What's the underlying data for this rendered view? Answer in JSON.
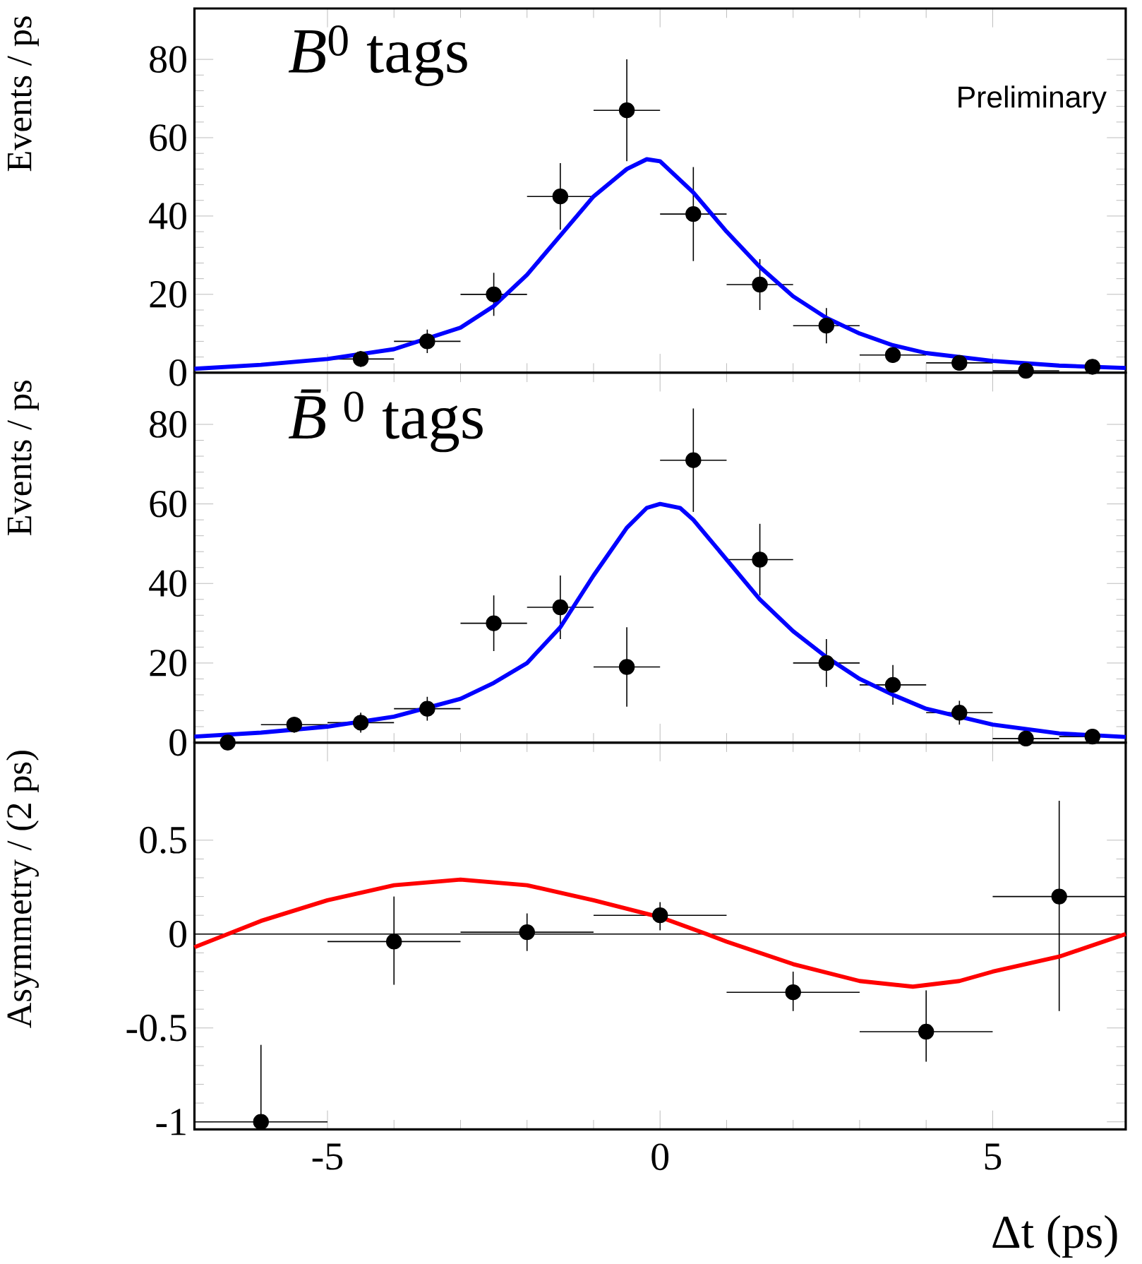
{
  "chart_data": [
    {
      "type": "scatter",
      "ylabel": "Events / ps",
      "xlim": [
        -7,
        7
      ],
      "xticks": [
        -5,
        0,
        5
      ],
      "ylim": [
        0,
        93
      ],
      "yticks": [
        0,
        20,
        40,
        60,
        80
      ],
      "tick_labels": "y",
      "annotations": [
        "*B*$^{0}$ tags",
        "Preliminary"
      ],
      "series": [
        {
          "type": "scatter",
          "marker": "circle",
          "color": "#000000",
          "x": [
            -4.5,
            -3.5,
            -2.5,
            -1.5,
            -0.5,
            0.5,
            1.5,
            2.5,
            3.5,
            4.5,
            5.5,
            6.5
          ],
          "values": [
            3.5,
            8,
            20,
            45,
            67,
            40.5,
            22.5,
            12,
            4.5,
            2.5,
            0.5,
            1.5
          ],
          "errors": [
            2,
            3,
            5.5,
            8.5,
            13,
            12,
            6.5,
            4.5,
            2,
            1.5,
            1,
            1
          ],
          "xerrors": [
            0.5,
            0.5,
            0.5,
            0.5,
            0.5,
            0.5,
            0.5,
            0.5,
            0.5,
            0.5,
            0.5,
            0.5
          ]
        },
        {
          "type": "line",
          "marker": "none",
          "color": "#0000ff",
          "x": [
            -7,
            -6,
            -5,
            -4,
            -3,
            -2.5,
            -2,
            -1.5,
            -1,
            -0.5,
            -0.2,
            0,
            0.5,
            1,
            1.5,
            2,
            2.5,
            3,
            3.5,
            4,
            5,
            6,
            7
          ],
          "values": [
            1,
            2,
            3.5,
            6,
            11.5,
            17,
            25,
            35,
            45,
            52,
            54.5,
            54,
            46,
            36,
            27,
            19.5,
            14,
            10,
            7,
            5,
            3,
            1.8,
            1.2
          ]
        }
      ]
    },
    {
      "type": "scatter",
      "ylabel": "Events / ps",
      "xlim": [
        -7,
        7
      ],
      "xticks": [
        -5,
        0,
        5
      ],
      "ylim": [
        0,
        93
      ],
      "yticks": [
        0,
        20,
        40,
        60,
        80
      ],
      "tick_labels": "y",
      "annotations": [
        "*B̄*$^{0}$ tags"
      ],
      "series": [
        {
          "type": "scatter",
          "marker": "circle",
          "color": "#000000",
          "x": [
            -6.5,
            -5.5,
            -4.5,
            -3.5,
            -2.5,
            -1.5,
            -0.5,
            0.5,
            1.5,
            2.5,
            3.5,
            4.5,
            5.5,
            6.5
          ],
          "values": [
            0,
            4.5,
            5,
            8.5,
            30,
            34,
            19,
            71,
            46,
            20,
            14.5,
            7.5,
            1,
            1.5
          ],
          "errors": [
            1,
            2,
            2.5,
            3,
            7,
            8,
            10,
            13,
            9,
            6,
            5,
            3,
            1,
            1
          ],
          "xerrors": [
            0.5,
            0.5,
            0.5,
            0.5,
            0.5,
            0.5,
            0.5,
            0.5,
            0.5,
            0.5,
            0.5,
            0.5,
            0.5,
            0.5
          ]
        },
        {
          "type": "line",
          "marker": "none",
          "color": "#0000ff",
          "x": [
            -7,
            -6,
            -5,
            -4,
            -3,
            -2.5,
            -2,
            -1.5,
            -1,
            -0.5,
            -0.2,
            0,
            0.3,
            0.5,
            1,
            1.5,
            2,
            2.5,
            3,
            3.5,
            4,
            5,
            6,
            7
          ],
          "values": [
            1.5,
            2.5,
            4,
            6.5,
            11,
            15,
            20,
            29,
            42,
            54,
            59,
            60,
            59,
            56,
            46,
            36,
            28,
            21.5,
            16,
            12,
            8.5,
            4.5,
            2.3,
            1.4
          ]
        }
      ]
    },
    {
      "type": "scatter",
      "ylabel": "Asymmetry / (2 ps)",
      "xlabel": "Δt (ps)",
      "xlim": [
        -7,
        7
      ],
      "xticks": [
        -5,
        0,
        5
      ],
      "ylim": [
        -1.04,
        1.02
      ],
      "yticks": [
        -1,
        -0.5,
        0,
        0.5
      ],
      "ref_lines": [
        {
          "axis": "y",
          "value": 0,
          "color": "#000000"
        }
      ],
      "series": [
        {
          "type": "scatter",
          "marker": "circle",
          "color": "#000000",
          "x": [
            -6,
            -4,
            -2,
            0,
            2,
            4,
            6
          ],
          "values": [
            -1,
            -0.04,
            0.01,
            0.1,
            -0.31,
            -0.52,
            0.2
          ],
          "errors": [
            [
              -1,
              -0.59
            ],
            [
              -0.27,
              0.2
            ],
            [
              -0.09,
              0.11
            ],
            [
              0.02,
              0.17
            ],
            [
              -0.41,
              -0.2
            ],
            [
              -0.68,
              -0.3
            ],
            [
              -0.41,
              0.71
            ]
          ],
          "xerrors": [
            1,
            1,
            1,
            1,
            1,
            1,
            1
          ]
        },
        {
          "type": "line",
          "marker": "none",
          "color": "#ff0000",
          "x": [
            -7,
            -6.5,
            -6,
            -5,
            -4,
            -3,
            -2,
            -1,
            0,
            0.7,
            1,
            2,
            3,
            3.8,
            4.5,
            5,
            6,
            7
          ],
          "values": [
            -0.07,
            0,
            0.07,
            0.18,
            0.26,
            0.29,
            0.26,
            0.18,
            0.09,
            0,
            -0.04,
            -0.16,
            -0.25,
            -0.28,
            -0.25,
            -0.2,
            -0.12,
            0
          ]
        }
      ]
    }
  ]
}
